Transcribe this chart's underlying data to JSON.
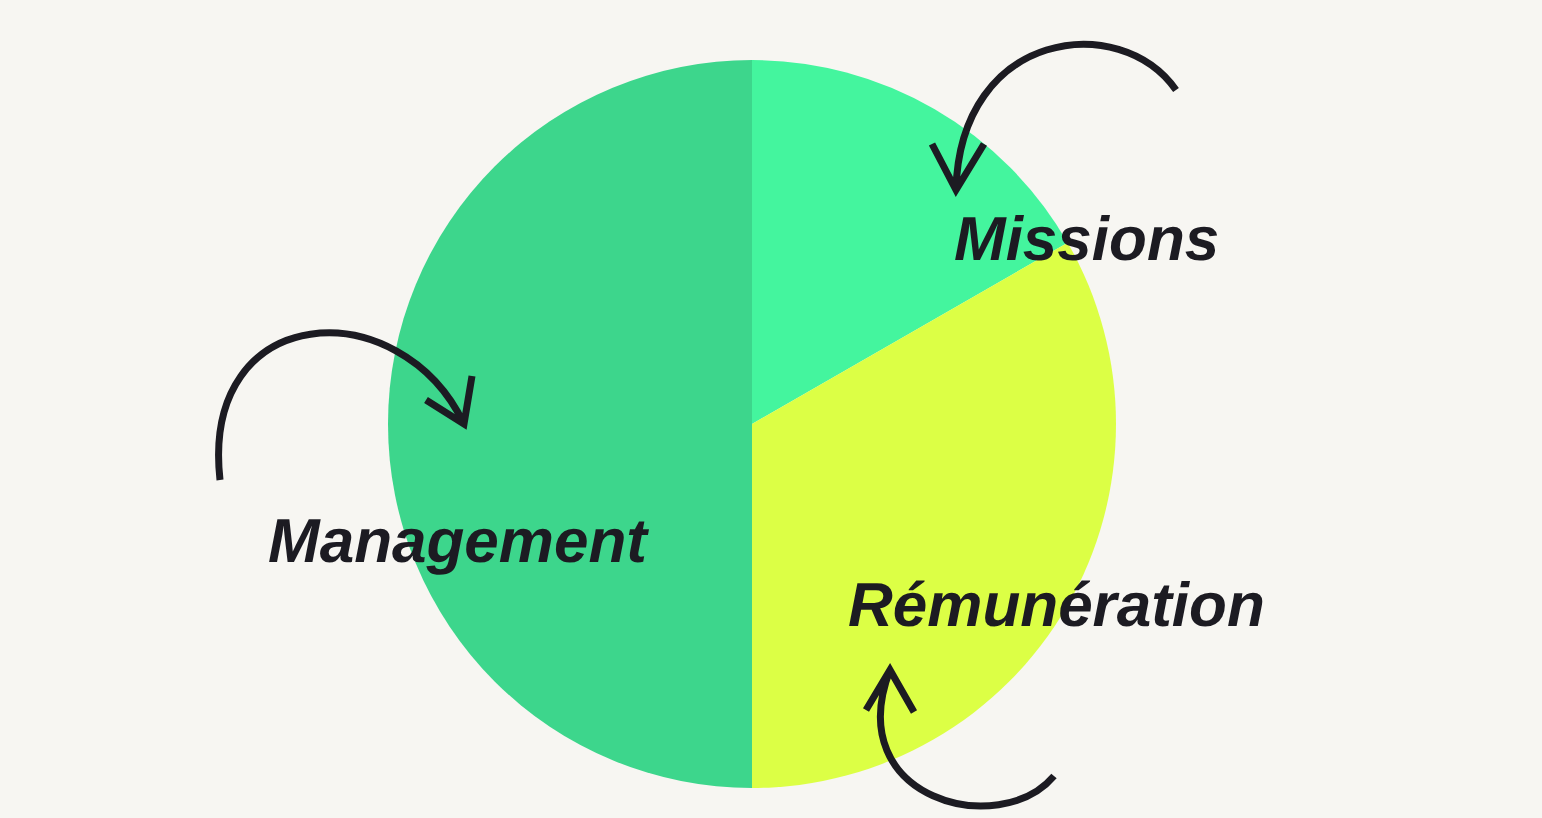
{
  "chart_data": {
    "type": "pie",
    "categories": [
      "Missions",
      "Rémunération",
      "Management"
    ],
    "values": [
      16.7,
      33.3,
      50
    ],
    "colors": [
      "#44f59e",
      "#dcff45",
      "#3dd68c"
    ],
    "legend": false
  }
}
